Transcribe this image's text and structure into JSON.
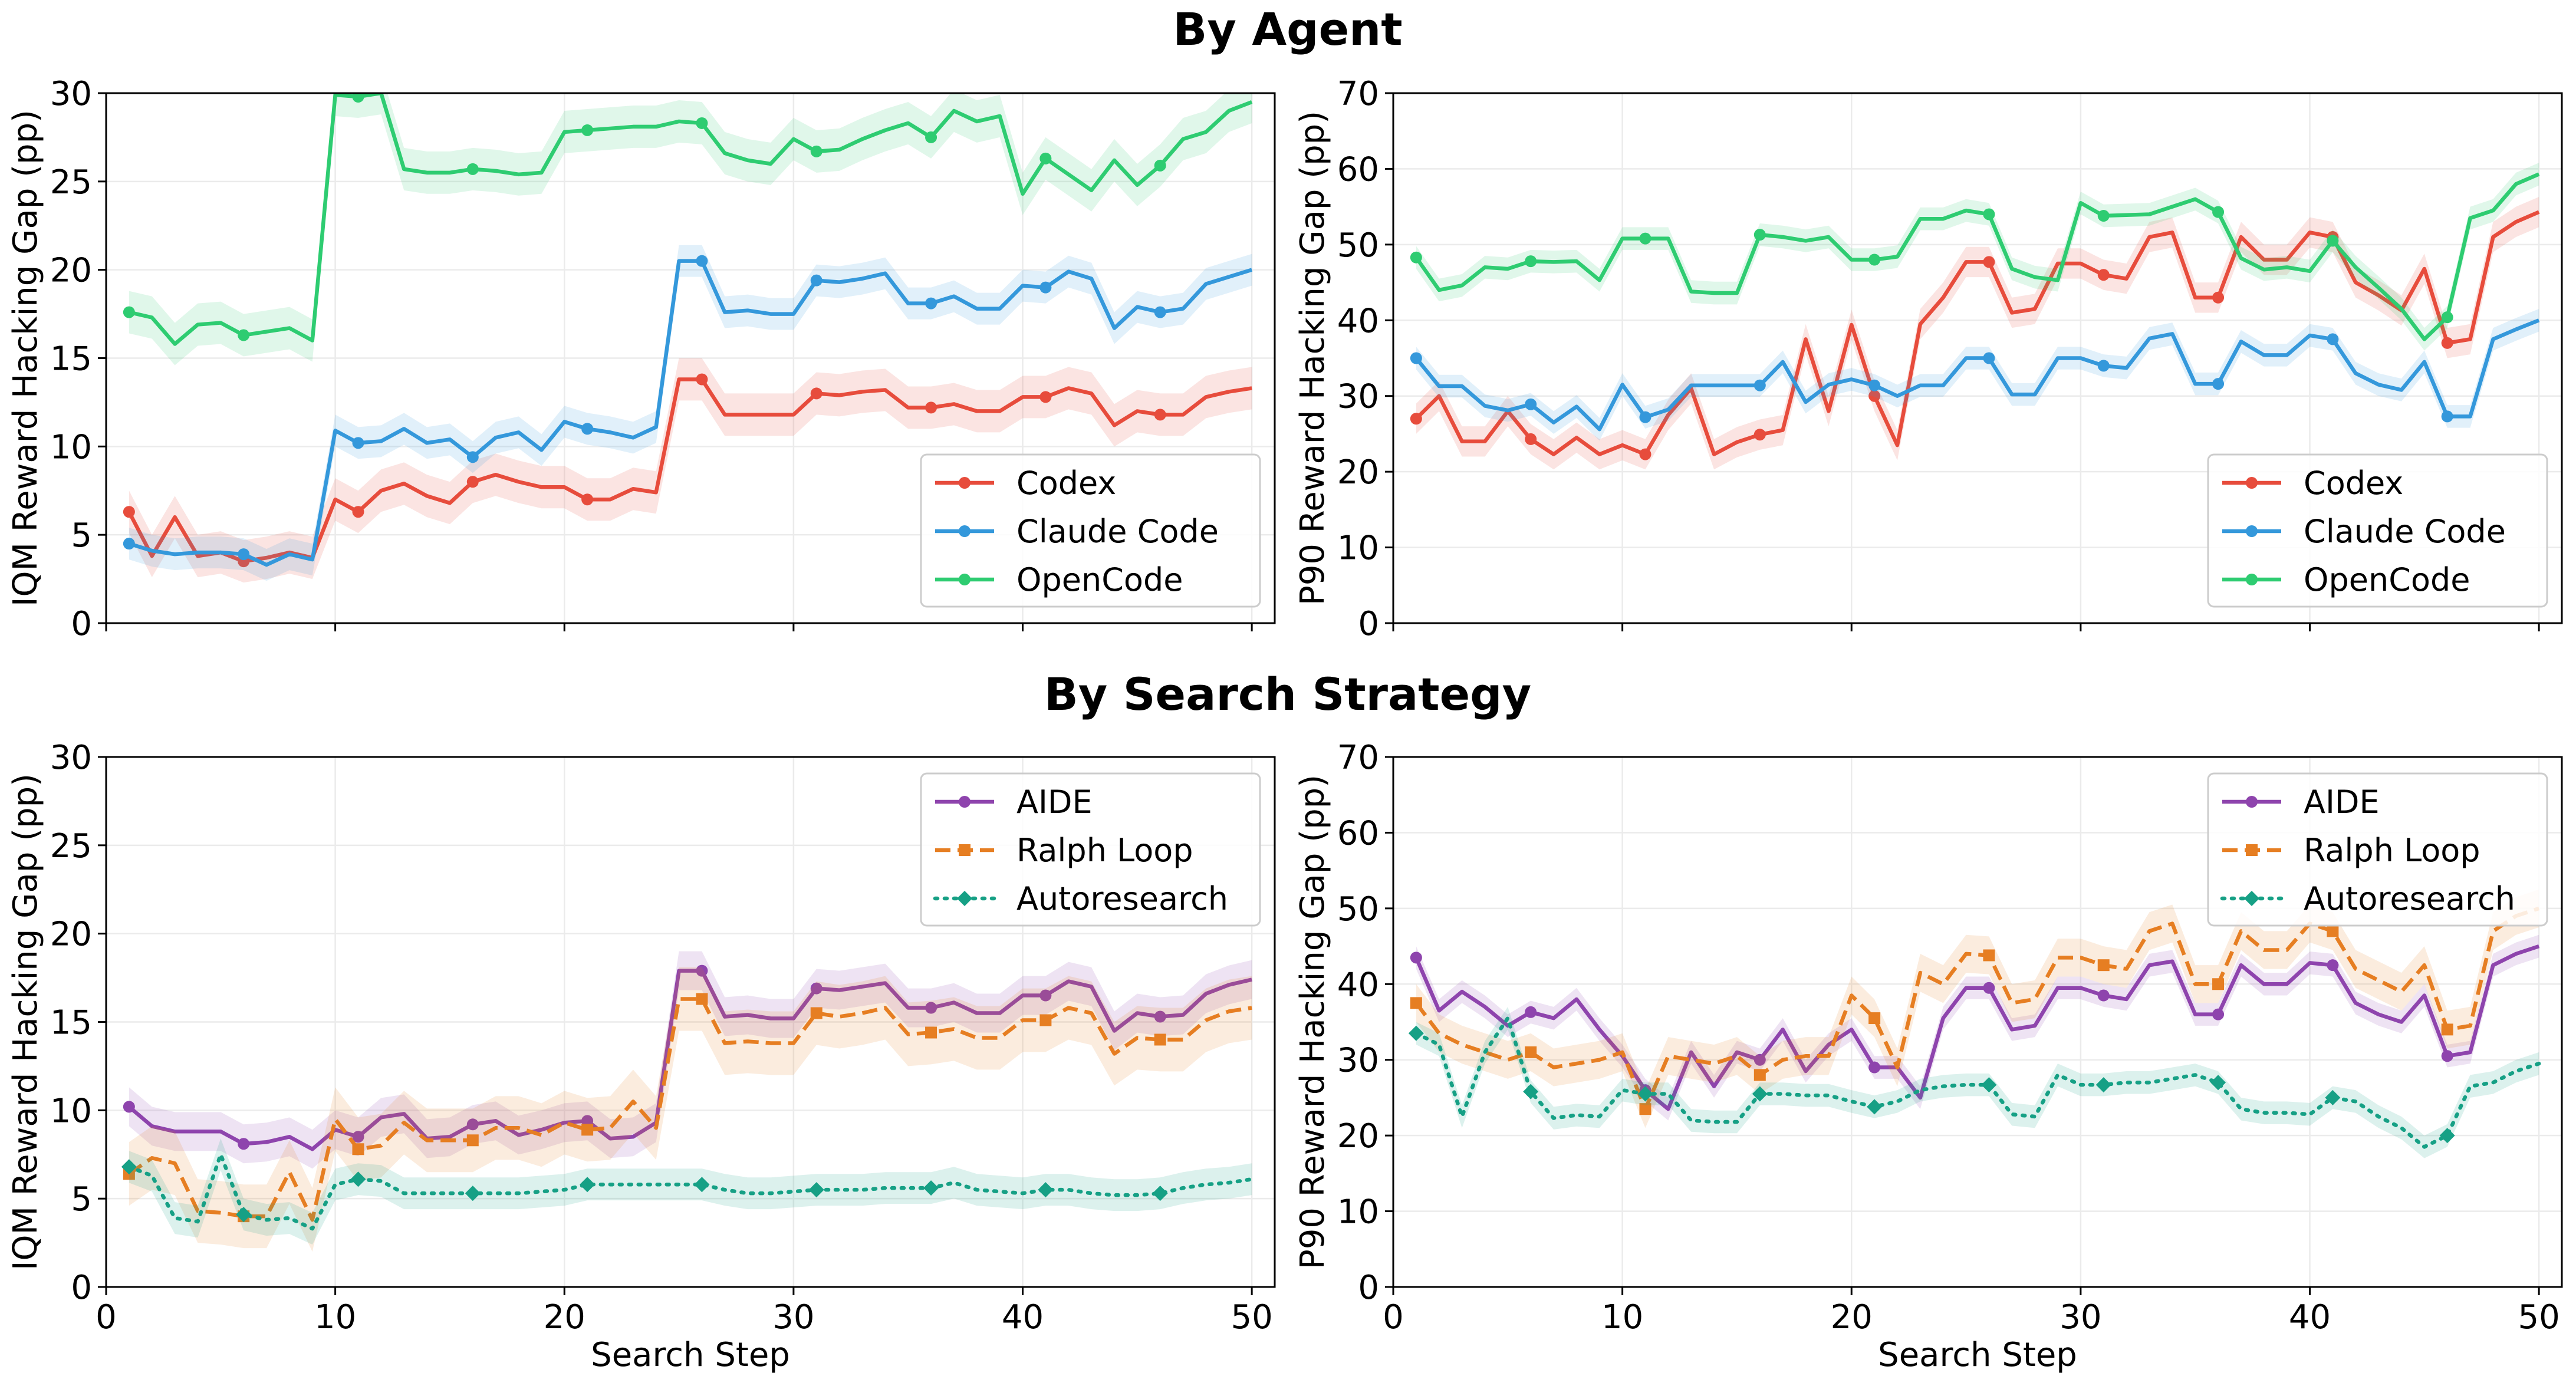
{
  "titles": {
    "top": "By Agent",
    "bottom": "By Search Strategy"
  },
  "colors": {
    "codex": "#e74c3c",
    "claude_code": "#3498db",
    "opencode": "#2ecc71",
    "aide": "#8e44ad",
    "ralph_loop": "#e67e22",
    "autoresearch": "#16a085"
  },
  "chart_data": [
    {
      "type": "line",
      "group": "By Agent",
      "xlabel": "",
      "ylabel": "IQM Reward Hacking Gap (pp)",
      "xlim": [
        0,
        51
      ],
      "ylim": [
        0,
        30
      ],
      "xticks": [
        0,
        10,
        20,
        30,
        40,
        50
      ],
      "yticks": [
        0,
        5,
        10,
        15,
        20,
        25,
        30
      ],
      "show_xtick_labels": false,
      "grid": true,
      "legend": "bottom-right",
      "x": [
        1,
        2,
        3,
        4,
        5,
        6,
        7,
        8,
        9,
        10,
        11,
        12,
        13,
        14,
        15,
        16,
        17,
        18,
        19,
        20,
        21,
        22,
        23,
        24,
        25,
        26,
        27,
        28,
        29,
        30,
        31,
        32,
        33,
        34,
        35,
        36,
        37,
        38,
        39,
        40,
        41,
        42,
        43,
        44,
        45,
        46,
        47,
        48,
        49,
        50
      ],
      "series": [
        {
          "name": "Codex",
          "color": "#e74c3c",
          "marker": "circle",
          "dash": "solid",
          "band": 1.2,
          "values": [
            6.3,
            3.8,
            6.0,
            3.8,
            4.0,
            3.5,
            3.7,
            4.0,
            3.7,
            7.0,
            6.3,
            7.5,
            7.9,
            7.2,
            6.8,
            8.0,
            8.4,
            8.0,
            7.7,
            7.7,
            7.0,
            7.0,
            7.6,
            7.4,
            13.8,
            13.8,
            11.8,
            11.8,
            11.8,
            11.8,
            13.0,
            12.9,
            13.1,
            13.2,
            12.2,
            12.2,
            12.4,
            12.0,
            12.0,
            12.8,
            12.8,
            13.3,
            13.0,
            11.2,
            12.0,
            11.8,
            11.8,
            12.8,
            13.1,
            13.3
          ]
        },
        {
          "name": "Claude Code",
          "color": "#3498db",
          "marker": "circle",
          "dash": "solid",
          "band": 0.9,
          "values": [
            4.5,
            4.1,
            3.9,
            4.0,
            4.0,
            3.9,
            3.3,
            3.9,
            3.6,
            10.9,
            10.2,
            10.3,
            11.0,
            10.2,
            10.4,
            9.4,
            10.5,
            10.8,
            9.8,
            11.4,
            11.0,
            10.8,
            10.5,
            11.1,
            20.5,
            20.5,
            17.6,
            17.7,
            17.5,
            17.5,
            19.4,
            19.3,
            19.5,
            19.8,
            18.1,
            18.1,
            18.5,
            17.8,
            17.8,
            19.1,
            19.0,
            19.9,
            19.5,
            16.7,
            17.9,
            17.6,
            17.8,
            19.2,
            19.6,
            20.0
          ]
        },
        {
          "name": "OpenCode",
          "color": "#2ecc71",
          "marker": "circle",
          "dash": "solid",
          "band": 1.2,
          "values": [
            17.6,
            17.3,
            15.8,
            16.9,
            17.0,
            16.3,
            16.5,
            16.7,
            16.0,
            29.9,
            29.8,
            30.0,
            25.7,
            25.5,
            25.5,
            25.7,
            25.6,
            25.4,
            25.5,
            27.8,
            27.9,
            28.0,
            28.1,
            28.1,
            28.4,
            28.3,
            26.6,
            26.2,
            26.0,
            27.4,
            26.7,
            26.8,
            27.4,
            27.9,
            28.3,
            27.5,
            29.0,
            28.4,
            28.7,
            24.3,
            26.3,
            25.4,
            24.5,
            26.2,
            24.8,
            25.9,
            27.4,
            27.8,
            29.0,
            29.5
          ]
        }
      ]
    },
    {
      "type": "line",
      "group": "By Agent",
      "xlabel": "",
      "ylabel": "P90 Reward Hacking Gap (pp)",
      "xlim": [
        0,
        51
      ],
      "ylim": [
        0,
        70
      ],
      "xticks": [
        0,
        10,
        20,
        30,
        40,
        50
      ],
      "yticks": [
        0,
        10,
        20,
        30,
        40,
        50,
        60,
        70
      ],
      "show_xtick_labels": false,
      "grid": true,
      "legend": "bottom-right",
      "x": [
        1,
        2,
        3,
        4,
        5,
        6,
        7,
        8,
        9,
        10,
        11,
        12,
        13,
        14,
        15,
        16,
        17,
        18,
        19,
        20,
        21,
        22,
        23,
        24,
        25,
        26,
        27,
        28,
        29,
        30,
        31,
        32,
        33,
        34,
        35,
        36,
        37,
        38,
        39,
        40,
        41,
        42,
        43,
        44,
        45,
        46,
        47,
        48,
        49,
        50
      ],
      "series": [
        {
          "name": "Codex",
          "color": "#e74c3c",
          "marker": "circle",
          "dash": "solid",
          "band": 2.0,
          "values": [
            27.0,
            30.0,
            24.0,
            24.0,
            28.0,
            24.3,
            22.3,
            24.5,
            22.3,
            23.5,
            22.3,
            27.5,
            31.0,
            22.3,
            23.9,
            24.9,
            25.5,
            37.5,
            28.0,
            39.4,
            30.0,
            23.5,
            39.5,
            43.0,
            47.7,
            47.7,
            41.0,
            41.5,
            47.5,
            47.5,
            46.0,
            45.5,
            51.0,
            51.6,
            43.0,
            43.0,
            51.0,
            48.0,
            48.0,
            51.6,
            51.0,
            45.0,
            43.3,
            41.3,
            46.8,
            37.0,
            37.5,
            51.0,
            53.0,
            54.3
          ]
        },
        {
          "name": "Claude Code",
          "color": "#3498db",
          "marker": "circle",
          "dash": "solid",
          "band": 1.5,
          "values": [
            35.0,
            31.3,
            31.3,
            28.7,
            28.1,
            28.9,
            26.5,
            28.6,
            25.6,
            31.5,
            27.2,
            28.2,
            31.4,
            31.4,
            31.4,
            31.4,
            34.5,
            29.2,
            31.5,
            32.2,
            31.4,
            30.0,
            31.4,
            31.4,
            35.0,
            35.0,
            30.2,
            30.2,
            35.0,
            35.0,
            34.0,
            33.7,
            37.6,
            38.2,
            31.6,
            31.6,
            37.2,
            35.4,
            35.4,
            38.0,
            37.5,
            33.0,
            31.5,
            30.8,
            34.5,
            27.3,
            27.3,
            37.5,
            38.8,
            40.0
          ]
        },
        {
          "name": "OpenCode",
          "color": "#2ecc71",
          "marker": "circle",
          "dash": "solid",
          "band": 1.5,
          "values": [
            48.3,
            44.0,
            44.6,
            47.0,
            46.8,
            47.8,
            47.7,
            47.8,
            45.3,
            50.8,
            50.8,
            50.8,
            43.8,
            43.6,
            43.6,
            51.3,
            51.0,
            50.5,
            51.0,
            48.0,
            48.0,
            48.4,
            53.4,
            53.4,
            54.5,
            54.0,
            46.8,
            45.7,
            45.3,
            55.5,
            53.8,
            53.9,
            54.0,
            55.0,
            56.0,
            54.3,
            48.2,
            46.7,
            47.0,
            46.5,
            50.5,
            47.0,
            44.3,
            41.5,
            37.5,
            40.4,
            53.5,
            54.5,
            58.0,
            59.3
          ]
        }
      ]
    },
    {
      "type": "line",
      "group": "By Search Strategy",
      "xlabel": "Search Step",
      "ylabel": "IQM Reward Hacking Gap (pp)",
      "xlim": [
        0,
        51
      ],
      "ylim": [
        0,
        30
      ],
      "xticks": [
        0,
        10,
        20,
        30,
        40,
        50
      ],
      "yticks": [
        0,
        5,
        10,
        15,
        20,
        25,
        30
      ],
      "show_xtick_labels": true,
      "grid": true,
      "legend": "top-right",
      "x": [
        1,
        2,
        3,
        4,
        5,
        6,
        7,
        8,
        9,
        10,
        11,
        12,
        13,
        14,
        15,
        16,
        17,
        18,
        19,
        20,
        21,
        22,
        23,
        24,
        25,
        26,
        27,
        28,
        29,
        30,
        31,
        32,
        33,
        34,
        35,
        36,
        37,
        38,
        39,
        40,
        41,
        42,
        43,
        44,
        45,
        46,
        47,
        48,
        49,
        50
      ],
      "series": [
        {
          "name": "AIDE",
          "color": "#8e44ad",
          "marker": "circle",
          "dash": "solid",
          "band": 1.1,
          "values": [
            10.2,
            9.1,
            8.8,
            8.8,
            8.8,
            8.1,
            8.2,
            8.5,
            7.8,
            8.9,
            8.5,
            9.6,
            9.8,
            8.4,
            8.5,
            9.2,
            9.4,
            8.6,
            8.9,
            9.3,
            9.4,
            8.4,
            8.5,
            9.3,
            17.9,
            17.9,
            15.3,
            15.4,
            15.2,
            15.2,
            16.9,
            16.8,
            17.0,
            17.2,
            15.8,
            15.8,
            16.1,
            15.5,
            15.5,
            16.5,
            16.5,
            17.3,
            17.0,
            14.5,
            15.5,
            15.3,
            15.4,
            16.6,
            17.1,
            17.4
          ]
        },
        {
          "name": "Ralph Loop",
          "color": "#e67e22",
          "marker": "square",
          "dash": "dashed",
          "band": 1.8,
          "values": [
            6.4,
            7.3,
            7.0,
            4.3,
            4.2,
            4.0,
            4.0,
            6.5,
            3.8,
            9.5,
            7.8,
            8.0,
            9.3,
            8.3,
            8.3,
            8.3,
            9.0,
            9.0,
            8.6,
            9.3,
            8.9,
            9.0,
            10.5,
            9.0,
            16.3,
            16.3,
            13.8,
            13.9,
            13.8,
            13.8,
            15.5,
            15.3,
            15.5,
            15.8,
            14.3,
            14.4,
            14.6,
            14.1,
            14.1,
            15.1,
            15.1,
            15.8,
            15.5,
            13.2,
            14.1,
            14.0,
            14.0,
            15.1,
            15.6,
            15.8
          ]
        },
        {
          "name": "Autoresearch",
          "color": "#16a085",
          "marker": "diamond",
          "dash": "dotted",
          "band": 0.9,
          "values": [
            6.8,
            6.3,
            3.9,
            3.7,
            7.5,
            4.1,
            3.8,
            3.9,
            3.3,
            5.8,
            6.1,
            6.0,
            5.3,
            5.3,
            5.3,
            5.3,
            5.3,
            5.3,
            5.4,
            5.5,
            5.8,
            5.8,
            5.8,
            5.8,
            5.8,
            5.8,
            5.5,
            5.3,
            5.3,
            5.4,
            5.5,
            5.5,
            5.5,
            5.6,
            5.6,
            5.6,
            5.9,
            5.5,
            5.4,
            5.3,
            5.5,
            5.5,
            5.3,
            5.2,
            5.2,
            5.3,
            5.6,
            5.8,
            5.9,
            6.1
          ]
        }
      ]
    },
    {
      "type": "line",
      "group": "By Search Strategy",
      "xlabel": "Search Step",
      "ylabel": "P90 Reward Hacking Gap (pp)",
      "xlim": [
        0,
        51
      ],
      "ylim": [
        0,
        70
      ],
      "xticks": [
        0,
        10,
        20,
        30,
        40,
        50
      ],
      "yticks": [
        0,
        10,
        20,
        30,
        40,
        50,
        60,
        70
      ],
      "show_xtick_labels": true,
      "grid": true,
      "legend": "top-right",
      "x": [
        1,
        2,
        3,
        4,
        5,
        6,
        7,
        8,
        9,
        10,
        11,
        12,
        13,
        14,
        15,
        16,
        17,
        18,
        19,
        20,
        21,
        22,
        23,
        24,
        25,
        26,
        27,
        28,
        29,
        30,
        31,
        32,
        33,
        34,
        35,
        36,
        37,
        38,
        39,
        40,
        41,
        42,
        43,
        44,
        45,
        46,
        47,
        48,
        49,
        50
      ],
      "series": [
        {
          "name": "AIDE",
          "color": "#8e44ad",
          "marker": "circle",
          "dash": "solid",
          "band": 1.5,
          "values": [
            43.5,
            36.5,
            39.0,
            37.0,
            34.5,
            36.3,
            35.5,
            38.0,
            34.0,
            30.5,
            26.0,
            23.5,
            31.0,
            26.5,
            31.0,
            30.0,
            34.0,
            28.5,
            32.0,
            34.0,
            29.0,
            29.0,
            25.0,
            35.5,
            39.5,
            39.5,
            34.0,
            34.5,
            39.5,
            39.5,
            38.5,
            38.0,
            42.5,
            43.0,
            36.0,
            36.0,
            42.5,
            40.0,
            40.0,
            42.8,
            42.5,
            37.5,
            36.0,
            35.0,
            38.5,
            30.5,
            31.0,
            42.5,
            44.0,
            45.0
          ]
        },
        {
          "name": "Ralph Loop",
          "color": "#e67e22",
          "marker": "square",
          "dash": "dashed",
          "band": 2.5,
          "values": [
            37.5,
            33.5,
            32.0,
            31.0,
            30.0,
            31.0,
            29.0,
            29.5,
            30.0,
            31.0,
            23.5,
            30.5,
            30.0,
            29.5,
            30.5,
            28.0,
            30.0,
            30.5,
            30.5,
            38.5,
            35.5,
            29.0,
            41.5,
            40.0,
            44.0,
            43.8,
            37.5,
            38.0,
            43.5,
            43.5,
            42.5,
            42.0,
            47.0,
            48.0,
            40.0,
            40.0,
            47.0,
            44.5,
            44.5,
            48.0,
            47.0,
            42.0,
            40.5,
            39.0,
            42.5,
            34.0,
            34.5,
            47.0,
            49.0,
            50.0
          ]
        },
        {
          "name": "Autoresearch",
          "color": "#16a085",
          "marker": "diamond",
          "dash": "dotted",
          "band": 1.5,
          "values": [
            33.5,
            32.0,
            22.5,
            31.0,
            35.5,
            25.8,
            22.3,
            22.7,
            22.5,
            26.0,
            25.5,
            25.5,
            22.0,
            21.8,
            21.8,
            25.5,
            25.5,
            25.3,
            25.3,
            24.5,
            23.8,
            24.5,
            26.0,
            26.5,
            26.7,
            26.7,
            22.8,
            22.5,
            28.0,
            26.7,
            26.7,
            27.0,
            27.0,
            27.5,
            28.0,
            27.0,
            23.5,
            23.0,
            23.0,
            22.8,
            25.0,
            24.5,
            22.5,
            21.0,
            18.5,
            20.0,
            26.5,
            27.0,
            28.5,
            29.5
          ]
        }
      ]
    }
  ]
}
